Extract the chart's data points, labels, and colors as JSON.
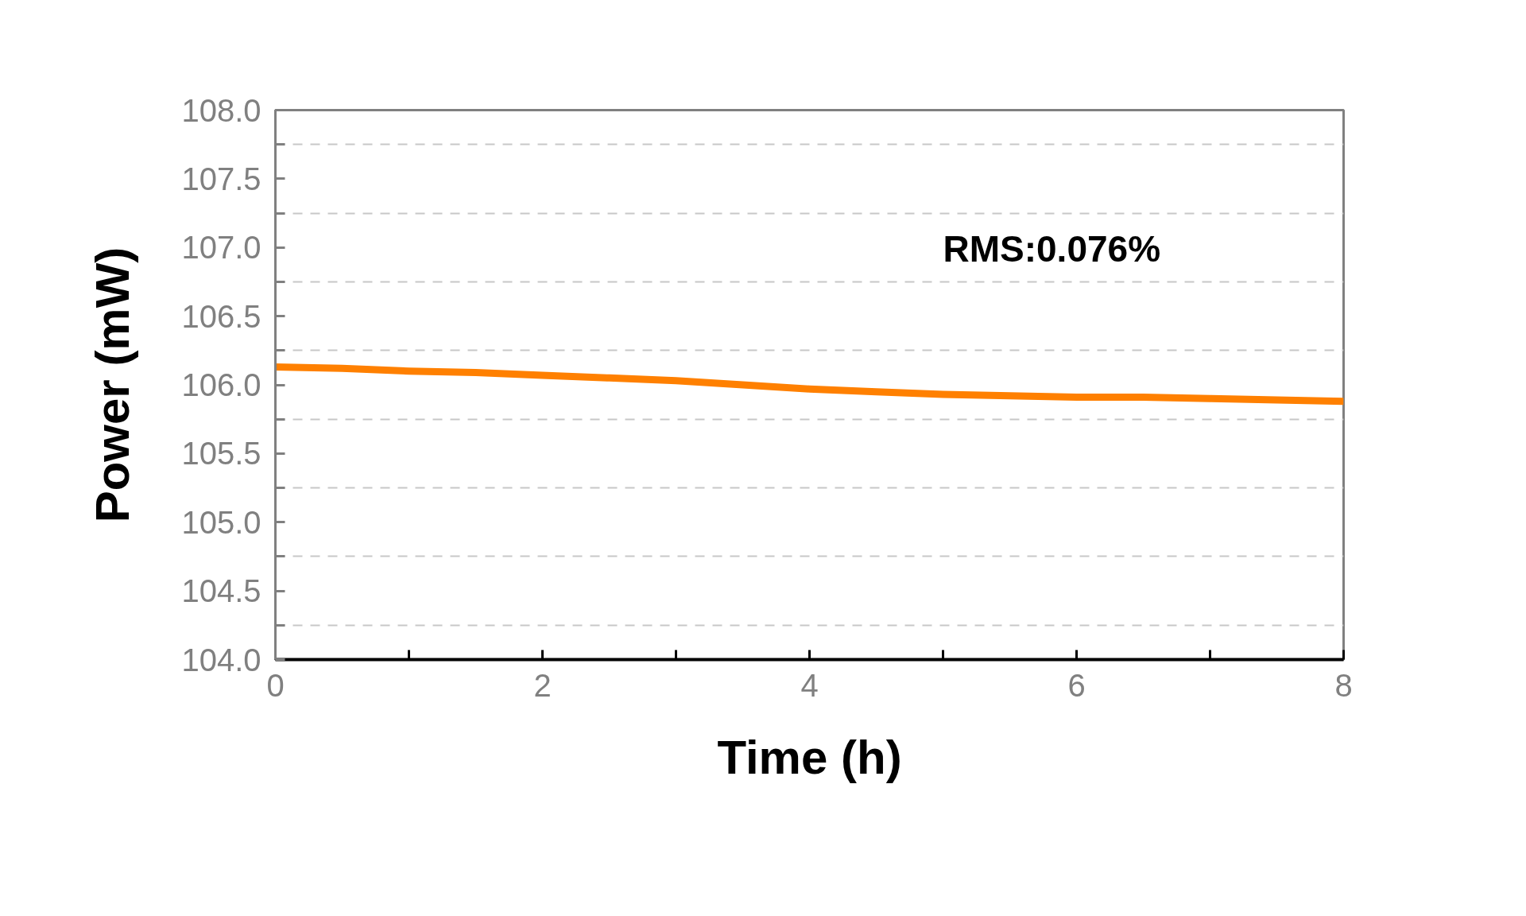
{
  "chart_data": {
    "type": "line",
    "xlabel": "Time (h)",
    "ylabel": "Power (mW)",
    "annotations": [
      "RMS:0.076%"
    ],
    "x": [
      0,
      0.5,
      1,
      1.5,
      2,
      2.5,
      3,
      3.5,
      4,
      4.5,
      5,
      5.5,
      6,
      6.5,
      7,
      7.5,
      8
    ],
    "series": [
      {
        "color": "#ff8000",
        "values": [
          106.13,
          106.12,
          106.1,
          106.09,
          106.07,
          106.05,
          106.03,
          106.0,
          105.97,
          105.95,
          105.93,
          105.92,
          105.91,
          105.91,
          105.9,
          105.89,
          105.88
        ]
      }
    ],
    "xlim": [
      0,
      8
    ],
    "ylim": [
      104,
      108
    ],
    "xticks": [
      0,
      {
        "value": 1,
        "label": null
      },
      2,
      {
        "value": 3,
        "label": null
      },
      4,
      {
        "value": 5,
        "label": null
      },
      6,
      {
        "value": 7,
        "label": null
      },
      8
    ],
    "yticks": [
      {
        "value": 104,
        "label": "104.0"
      },
      {
        "value": 104.25,
        "label": null
      },
      {
        "value": 104.5,
        "label": "104.5"
      },
      {
        "value": 104.75,
        "label": null
      },
      {
        "value": 105,
        "label": "105.0"
      },
      {
        "value": 105.25,
        "label": null
      },
      {
        "value": 105.5,
        "label": "105.5"
      },
      {
        "value": 105.75,
        "label": null
      },
      {
        "value": 106,
        "label": "106.0"
      },
      {
        "value": 106.25,
        "label": null
      },
      {
        "value": 106.5,
        "label": "106.5"
      },
      {
        "value": 106.75,
        "label": null
      },
      {
        "value": 107,
        "label": "107.0"
      },
      {
        "value": 107.25,
        "label": null
      },
      {
        "value": 107.5,
        "label": "107.5"
      },
      {
        "value": 107.75,
        "label": null
      },
      {
        "value": 108,
        "label": "108.0"
      }
    ],
    "grid": "y",
    "line_style": "solid"
  }
}
